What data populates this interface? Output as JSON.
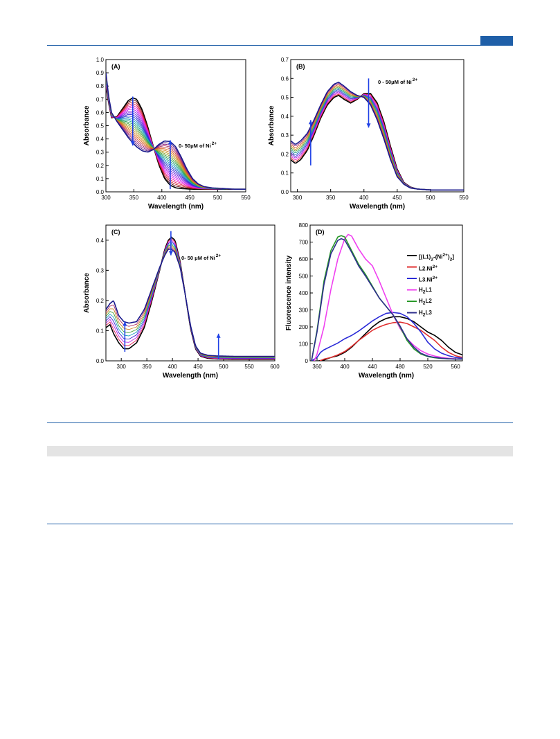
{
  "page": {
    "header_color": "#1f5fa8"
  },
  "chart_data": [
    {
      "panel_label": "(A)",
      "type": "line",
      "xlabel": "Wavelength (nm)",
      "ylabel": "Absorbance",
      "xlim": [
        300,
        550
      ],
      "ylim": [
        0.0,
        1.0
      ],
      "xticks": [
        "300",
        "350",
        "400",
        "450",
        "500",
        "550"
      ],
      "yticks": [
        "0.0",
        "0.1",
        "0.2",
        "0.3",
        "0.4",
        "0.5",
        "0.6",
        "0.7",
        "0.8",
        "0.9",
        "1.0"
      ],
      "annotation": "0- 50μM of Ni",
      "annotation_sup": "2+",
      "n_traces": 25,
      "start_curve": {
        "x": [
          300,
          305,
          310,
          320,
          330,
          340,
          348,
          355,
          365,
          375,
          385,
          395,
          405,
          415,
          425,
          435,
          445,
          455,
          465,
          475,
          490,
          510,
          530,
          550
        ],
        "y": [
          0.8,
          0.67,
          0.56,
          0.57,
          0.63,
          0.69,
          0.71,
          0.7,
          0.62,
          0.49,
          0.34,
          0.2,
          0.1,
          0.05,
          0.03,
          0.025,
          0.022,
          0.02,
          0.02,
          0.02,
          0.02,
          0.02,
          0.02,
          0.02
        ]
      },
      "end_curve": {
        "x": [
          300,
          305,
          310,
          320,
          330,
          340,
          348,
          355,
          365,
          375,
          385,
          395,
          405,
          415,
          425,
          435,
          445,
          455,
          465,
          475,
          490,
          510,
          530,
          550
        ],
        "y": [
          0.9,
          0.72,
          0.6,
          0.53,
          0.47,
          0.41,
          0.37,
          0.34,
          0.31,
          0.3,
          0.32,
          0.36,
          0.385,
          0.38,
          0.34,
          0.26,
          0.17,
          0.1,
          0.06,
          0.04,
          0.03,
          0.025,
          0.02,
          0.02
        ]
      },
      "arrows": [
        {
          "x": 348,
          "y_from": 0.72,
          "y_to": 0.35
        },
        {
          "x": 415,
          "y_from": 0.02,
          "y_to": 0.39
        }
      ]
    },
    {
      "panel_label": "(B)",
      "type": "line",
      "xlabel": "Wavelength (nm)",
      "ylabel": "Absorbance",
      "xlim": [
        290,
        550
      ],
      "ylim": [
        0.0,
        0.7
      ],
      "xticks": [
        "300",
        "350",
        "400",
        "450",
        "500",
        "550"
      ],
      "yticks": [
        "0.0",
        "0.1",
        "0.2",
        "0.3",
        "0.4",
        "0.5",
        "0.6",
        "0.7"
      ],
      "annotation": "0 -  50μM of Ni",
      "annotation_sup": "2+",
      "n_traces": 12,
      "start_curve": {
        "x": [
          290,
          297,
          305,
          315,
          325,
          335,
          345,
          355,
          362,
          370,
          380,
          390,
          400,
          410,
          420,
          430,
          440,
          450,
          460,
          470,
          480,
          500,
          525,
          550
        ],
        "y": [
          0.17,
          0.15,
          0.17,
          0.22,
          0.3,
          0.39,
          0.46,
          0.5,
          0.51,
          0.49,
          0.47,
          0.49,
          0.52,
          0.52,
          0.47,
          0.37,
          0.24,
          0.12,
          0.05,
          0.025,
          0.015,
          0.01,
          0.01,
          0.01
        ]
      },
      "end_curve": {
        "x": [
          290,
          297,
          305,
          315,
          325,
          335,
          345,
          355,
          362,
          370,
          380,
          390,
          400,
          410,
          420,
          430,
          440,
          450,
          460,
          470,
          480,
          500,
          525,
          550
        ],
        "y": [
          0.27,
          0.25,
          0.27,
          0.31,
          0.38,
          0.46,
          0.53,
          0.57,
          0.58,
          0.56,
          0.53,
          0.51,
          0.5,
          0.46,
          0.38,
          0.28,
          0.17,
          0.08,
          0.04,
          0.02,
          0.015,
          0.01,
          0.01,
          0.01
        ]
      },
      "arrows": [
        {
          "x": 320,
          "y_from": 0.14,
          "y_to": 0.38
        },
        {
          "x": 407,
          "y_from": 0.6,
          "y_to": 0.34
        }
      ]
    },
    {
      "panel_label": "(C)",
      "type": "line",
      "xlabel": "Wavelength (nm)",
      "ylabel": "Absorbance",
      "xlim": [
        270,
        600
      ],
      "ylim": [
        0.0,
        0.45
      ],
      "xticks": [
        "300",
        "350",
        "400",
        "450",
        "500",
        "550",
        "600"
      ],
      "yticks": [
        "0.0",
        "0.1",
        "0.2",
        "0.3",
        "0.4"
      ],
      "annotation": "0- 50 μM of Ni",
      "annotation_sup": "2+",
      "n_traces": 9,
      "start_curve": {
        "x": [
          270,
          278,
          285,
          295,
          305,
          315,
          330,
          345,
          360,
          375,
          385,
          392,
          398,
          405,
          415,
          425,
          435,
          445,
          455,
          470,
          490,
          520,
          560,
          600
        ],
        "y": [
          0.11,
          0.12,
          0.09,
          0.06,
          0.04,
          0.04,
          0.06,
          0.11,
          0.2,
          0.3,
          0.37,
          0.4,
          0.41,
          0.4,
          0.33,
          0.22,
          0.11,
          0.04,
          0.015,
          0.008,
          0.006,
          0.005,
          0.005,
          0.005
        ]
      },
      "end_curve": {
        "x": [
          270,
          278,
          285,
          295,
          305,
          315,
          330,
          345,
          360,
          375,
          385,
          392,
          398,
          405,
          415,
          425,
          435,
          445,
          455,
          470,
          490,
          520,
          560,
          600
        ],
        "y": [
          0.17,
          0.19,
          0.2,
          0.15,
          0.13,
          0.125,
          0.13,
          0.17,
          0.24,
          0.31,
          0.35,
          0.37,
          0.37,
          0.36,
          0.31,
          0.22,
          0.12,
          0.05,
          0.025,
          0.018,
          0.016,
          0.015,
          0.015,
          0.015
        ]
      },
      "arrows": [
        {
          "x": 307,
          "y_from": 0.03,
          "y_to": 0.13
        },
        {
          "x": 397,
          "y_from": 0.43,
          "y_to": 0.35
        },
        {
          "x": 490,
          "y_from": 0.005,
          "y_to": 0.09
        }
      ]
    },
    {
      "panel_label": "(D)",
      "type": "line",
      "xlabel": "Wavelength (nm)",
      "ylabel": "Fluorescence intensity",
      "xlim": [
        350,
        570
      ],
      "ylim": [
        0,
        800
      ],
      "xticks": [
        "360",
        "400",
        "440",
        "480",
        "520",
        "560"
      ],
      "yticks": [
        "0",
        "100",
        "200",
        "300",
        "400",
        "500",
        "600",
        "700",
        "800"
      ],
      "series": [
        {
          "name_html": "[(L1)<sub>2</sub>-(Ni<sup>2+</sup>)<sub>2</sub>]",
          "color": "#000000",
          "x": [
            362,
            370,
            380,
            390,
            400,
            410,
            420,
            430,
            440,
            450,
            460,
            470,
            480,
            490,
            500,
            510,
            520,
            530,
            540,
            550,
            560,
            570
          ],
          "y": [
            0,
            5,
            20,
            30,
            50,
            80,
            120,
            160,
            200,
            230,
            250,
            260,
            260,
            250,
            230,
            200,
            170,
            150,
            120,
            80,
            50,
            35
          ]
        },
        {
          "name_html": "L2.Ni<sup>2+</sup>",
          "color": "#e03030",
          "x": [
            364,
            370,
            380,
            390,
            400,
            410,
            420,
            430,
            440,
            450,
            460,
            470,
            480,
            490,
            500,
            510,
            520,
            530,
            540,
            550,
            560,
            570
          ],
          "y": [
            0,
            10,
            20,
            35,
            55,
            85,
            120,
            150,
            180,
            200,
            215,
            225,
            228,
            220,
            200,
            180,
            150,
            120,
            80,
            50,
            30,
            20
          ]
        },
        {
          "name_html": "L3.Ni<sup>2+</sup>",
          "color": "#2b2bd8",
          "x": [
            352,
            360,
            365,
            370,
            380,
            390,
            400,
            410,
            420,
            430,
            440,
            450,
            460,
            470,
            480,
            490,
            500,
            510,
            520,
            530,
            540,
            550,
            560,
            570
          ],
          "y": [
            0,
            20,
            50,
            65,
            85,
            105,
            130,
            150,
            175,
            205,
            235,
            260,
            280,
            285,
            280,
            260,
            220,
            170,
            110,
            70,
            45,
            30,
            20,
            15
          ]
        },
        {
          "name_html": "H<sub>2</sub>L1",
          "color": "#f040f0",
          "x": [
            356,
            360,
            370,
            380,
            390,
            400,
            405,
            410,
            420,
            430,
            440,
            450,
            460,
            470,
            480,
            490,
            500,
            510,
            520,
            530,
            540,
            550,
            560,
            570
          ],
          "y": [
            0,
            40,
            200,
            420,
            600,
            720,
            745,
            735,
            660,
            600,
            560,
            470,
            370,
            270,
            190,
            130,
            90,
            60,
            40,
            28,
            20,
            15,
            12,
            10
          ]
        },
        {
          "name_html": "H<sub>2</sub>L2",
          "color": "#2a9a2a",
          "x": [
            352,
            360,
            370,
            380,
            390,
            395,
            400,
            410,
            420,
            430,
            440,
            450,
            460,
            470,
            480,
            490,
            500,
            510,
            520,
            530,
            540,
            550,
            560,
            570
          ],
          "y": [
            0,
            180,
            470,
            650,
            730,
            738,
            730,
            650,
            570,
            510,
            440,
            370,
            320,
            270,
            200,
            120,
            70,
            40,
            25,
            18,
            14,
            12,
            10,
            10
          ]
        },
        {
          "name_html": "H<sub>2</sub>L3",
          "color": "#2e2e8c",
          "x": [
            352,
            360,
            370,
            380,
            390,
            395,
            400,
            410,
            420,
            430,
            440,
            450,
            460,
            470,
            480,
            490,
            500,
            510,
            520,
            530,
            540,
            550,
            560,
            570
          ],
          "y": [
            0,
            170,
            450,
            630,
            710,
            720,
            712,
            640,
            560,
            500,
            435,
            370,
            320,
            270,
            205,
            130,
            80,
            45,
            28,
            20,
            15,
            12,
            10,
            10
          ]
        }
      ]
    }
  ]
}
